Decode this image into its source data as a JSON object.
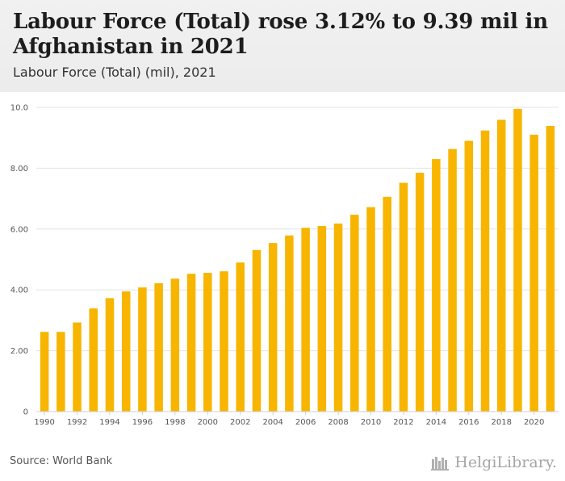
{
  "header": {
    "title": "Labour Force (Total) rose 3.12% to 9.39 mil in Afghanistan in 2021",
    "subtitle": "Labour Force (Total) (mil), 2021"
  },
  "footer": {
    "source": "Source: World Bank",
    "brand": "HelgiLibrary."
  },
  "colors": {
    "bar": "#f7b500",
    "grid": "#e3e3e3",
    "axis_text": "#555555"
  },
  "chart_data": {
    "type": "bar",
    "categories": [
      "1990",
      "1991",
      "1992",
      "1993",
      "1994",
      "1995",
      "1996",
      "1997",
      "1998",
      "1999",
      "2000",
      "2001",
      "2002",
      "2003",
      "2004",
      "2005",
      "2006",
      "2007",
      "2008",
      "2009",
      "2010",
      "2011",
      "2012",
      "2013",
      "2014",
      "2015",
      "2016",
      "2017",
      "2018",
      "2019",
      "2020",
      "2021"
    ],
    "x_tick_labels": [
      "1990",
      "1992",
      "1994",
      "1996",
      "1998",
      "2000",
      "2002",
      "2004",
      "2006",
      "2008",
      "2010",
      "2012",
      "2014",
      "2016",
      "2018",
      "2020"
    ],
    "values": [
      2.62,
      2.62,
      2.93,
      3.39,
      3.73,
      3.95,
      4.08,
      4.22,
      4.37,
      4.53,
      4.56,
      4.61,
      4.9,
      5.31,
      5.54,
      5.79,
      6.04,
      6.1,
      6.18,
      6.47,
      6.72,
      7.06,
      7.52,
      7.85,
      8.3,
      8.63,
      8.9,
      9.24,
      9.59,
      9.95,
      9.1,
      9.39
    ],
    "y_ticks": [
      "0",
      "2.00",
      "4.00",
      "6.00",
      "8.00",
      "10.0"
    ],
    "ylim": [
      0,
      10
    ],
    "grid": true
  }
}
